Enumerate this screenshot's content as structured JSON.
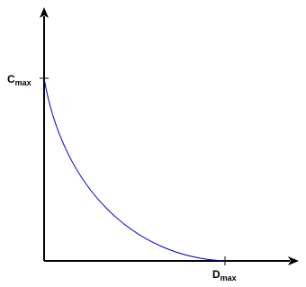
{
  "y_axis_label": {
    "main": "C",
    "sub": "max"
  },
  "x_axis_label": {
    "main": "D",
    "sub": "max"
  }
}
